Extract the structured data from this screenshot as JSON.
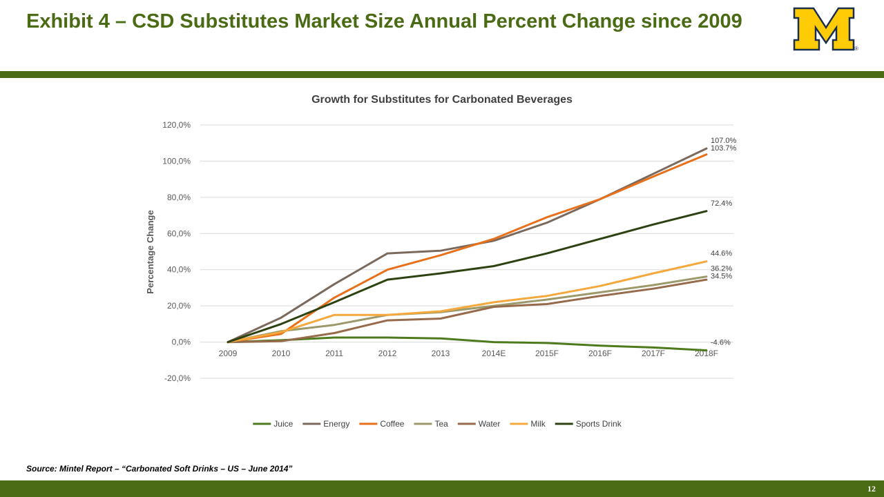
{
  "slide": {
    "title": "Exhibit 4 – CSD Substitutes Market Size Annual Percent Change since 2009",
    "source": "Source: Mintel Report – “Carbonated Soft Drinks – US – June 2014”",
    "page_number": "12"
  },
  "logo": {
    "letter": "M",
    "mark": "®",
    "fill": "#FFCB05",
    "outline": "#1a2f4c"
  },
  "colors": {
    "accent": "#4a6b14"
  },
  "chart_data": {
    "type": "line",
    "title": "Growth for Substitutes for Carbonated Beverages",
    "ylabel": "Percentage Change",
    "xlabel": "",
    "categories": [
      "2009",
      "2010",
      "2011",
      "2012",
      "2013",
      "2014E",
      "2015F",
      "2016F",
      "2017F",
      "2018F"
    ],
    "ylim": [
      -20,
      120
    ],
    "yticks": [
      120,
      100,
      80,
      60,
      40,
      20,
      0,
      -20
    ],
    "ytick_labels": [
      "120,0%",
      "100,0%",
      "80,0%",
      "60,0%",
      "40,0%",
      "20,0%",
      "0,0%",
      "-20,0%"
    ],
    "grid": true,
    "legend_position": "bottom",
    "series": [
      {
        "name": "Juice",
        "color": "#4e7a1e",
        "values": [
          0,
          1,
          2.5,
          2.5,
          2,
          0,
          -0.5,
          -2,
          -3,
          -4.6
        ],
        "end_label": "-4.6%"
      },
      {
        "name": "Energy",
        "color": "#7a6a5e",
        "values": [
          0,
          13.5,
          32,
          49,
          50.5,
          56,
          66,
          79,
          93,
          107
        ],
        "end_label": "107.0%"
      },
      {
        "name": "Coffee",
        "color": "#e8701a",
        "values": [
          0,
          4.5,
          24.5,
          40,
          48,
          57,
          69,
          79,
          91.5,
          103.7
        ],
        "end_label": "103.7%"
      },
      {
        "name": "Tea",
        "color": "#9c9a6a",
        "values": [
          0,
          6,
          9.5,
          15,
          16.5,
          20,
          23.5,
          27.5,
          31.5,
          36.2
        ],
        "end_label": "36.2%"
      },
      {
        "name": "Water",
        "color": "#966a4a",
        "values": [
          0,
          0.5,
          5,
          12,
          13,
          19.5,
          21,
          25.5,
          29.5,
          34.5
        ],
        "end_label": "34.5%"
      },
      {
        "name": "Milk",
        "color": "#f5a83c",
        "values": [
          0,
          5.5,
          15,
          15,
          17,
          22,
          25.5,
          31,
          38,
          44.6
        ],
        "end_label": "44.6%"
      },
      {
        "name": "Sports Drink",
        "color": "#2d4210",
        "values": [
          0,
          10,
          22,
          34.5,
          38,
          42,
          49,
          57,
          65,
          72.4
        ],
        "end_label": "72.4%"
      }
    ]
  }
}
